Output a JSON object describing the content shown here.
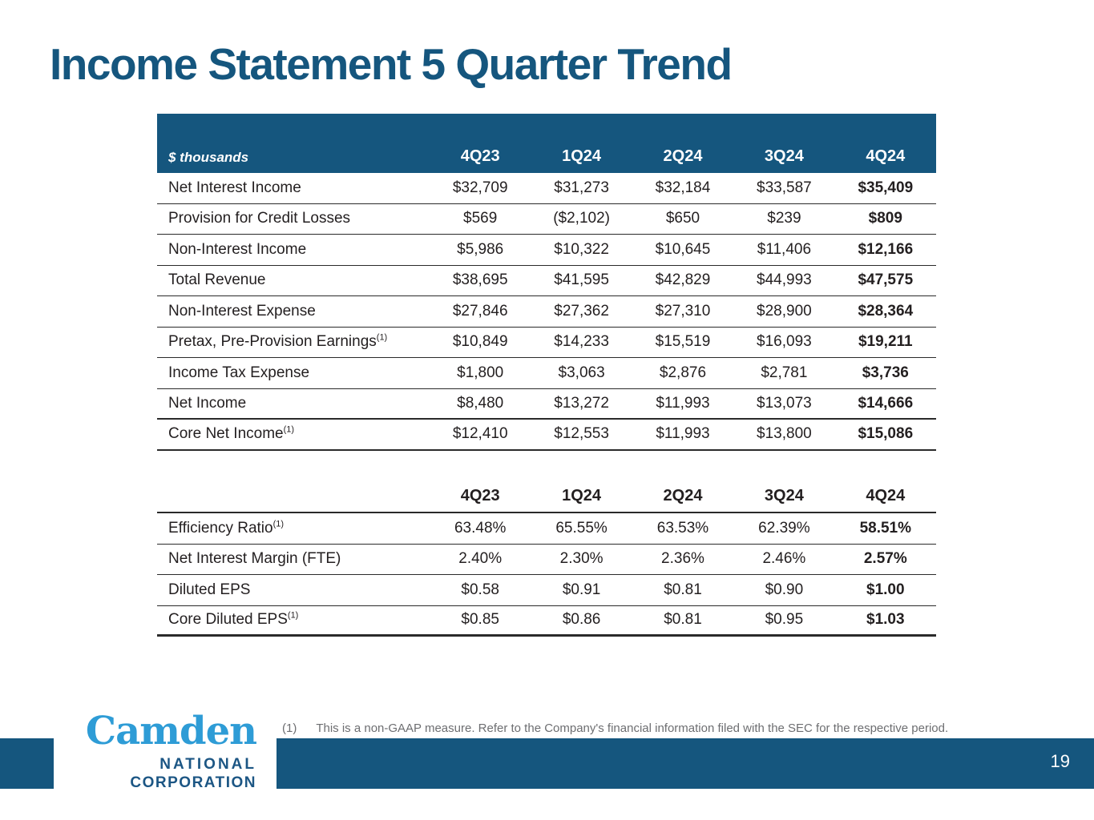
{
  "page": {
    "title": "Income Statement 5 Quarter Trend",
    "page_number": "19"
  },
  "table1": {
    "unit_label": "$ thousands",
    "columns": [
      "4Q23",
      "1Q24",
      "2Q24",
      "3Q24",
      "4Q24"
    ],
    "rows": [
      {
        "label": "Net Interest Income",
        "values": [
          "$32,709",
          "$31,273",
          "$32,184",
          "$33,587",
          "$35,409"
        ]
      },
      {
        "label": "Provision for Credit Losses",
        "values": [
          "$569",
          "($2,102)",
          "$650",
          "$239",
          "$809"
        ]
      },
      {
        "label": "Non-Interest Income",
        "values": [
          "$5,986",
          "$10,322",
          "$10,645",
          "$11,406",
          "$12,166"
        ]
      },
      {
        "label": "Total Revenue",
        "values": [
          "$38,695",
          "$41,595",
          "$42,829",
          "$44,993",
          "$47,575"
        ]
      },
      {
        "label": "Non-Interest Expense",
        "values": [
          "$27,846",
          "$27,362",
          "$27,310",
          "$28,900",
          "$28,364"
        ]
      },
      {
        "label": "Pretax, Pre-Provision Earnings",
        "sup": "(1)",
        "values": [
          "$10,849",
          "$14,233",
          "$15,519",
          "$16,093",
          "$19,211"
        ]
      },
      {
        "label": "Income Tax Expense",
        "values": [
          "$1,800",
          "$3,063",
          "$2,876",
          "$2,781",
          "$3,736"
        ]
      },
      {
        "label": "Net Income",
        "values": [
          "$8,480",
          "$13,272",
          "$11,993",
          "$13,073",
          "$14,666"
        ]
      },
      {
        "label": "Core Net Income",
        "sup": "(1)",
        "values": [
          "$12,410",
          "$12,553",
          "$11,993",
          "$13,800",
          "$15,086"
        ]
      }
    ]
  },
  "table2": {
    "columns": [
      "4Q23",
      "1Q24",
      "2Q24",
      "3Q24",
      "4Q24"
    ],
    "rows": [
      {
        "label": "Efficiency Ratio",
        "sup": "(1)",
        "values": [
          "63.48%",
          "65.55%",
          "63.53%",
          "62.39%",
          "58.51%"
        ]
      },
      {
        "label": "Net Interest Margin (FTE)",
        "values": [
          "2.40%",
          "2.30%",
          "2.36%",
          "2.46%",
          "2.57%"
        ]
      },
      {
        "label": "Diluted EPS",
        "values": [
          "$0.58",
          "$0.91",
          "$0.81",
          "$0.90",
          "$1.00"
        ]
      },
      {
        "label": "Core Diluted EPS",
        "sup": "(1)",
        "values": [
          "$0.85",
          "$0.86",
          "$0.81",
          "$0.95",
          "$1.03"
        ]
      }
    ]
  },
  "footnote": {
    "marker": "(1)",
    "text": "This is a non-GAAP measure. Refer to the Company's financial information filed with the SEC for the respective period."
  },
  "logo": {
    "name": "Camden",
    "line1": "NATIONAL",
    "line2": "CORPORATION"
  },
  "colors": {
    "brand_dark_blue": "#15567E",
    "logo_light_blue": "#2E9CD6",
    "text_dark": "#231F20",
    "footnote_gray": "#6D6E71"
  }
}
